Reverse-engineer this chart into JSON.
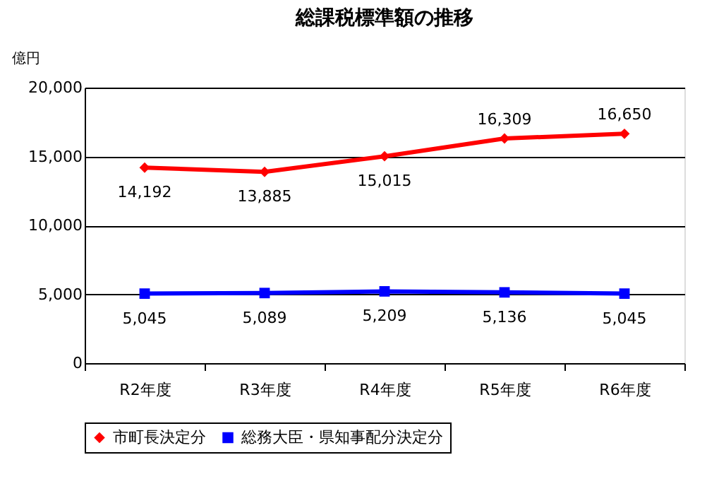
{
  "chart_data": {
    "type": "line",
    "title": "総課税標準額の推移",
    "ylabel": "億円",
    "categories": [
      "R2年度",
      "R3年度",
      "R4年度",
      "R5年度",
      "R6年度"
    ],
    "series": [
      {
        "name": "市町長決定分",
        "color": "#ff0000",
        "marker": "diamond",
        "values": [
          14192,
          13885,
          15015,
          16309,
          16650
        ],
        "value_labels": [
          "14,192",
          "13,885",
          "15,015",
          "16,309",
          "16,650"
        ]
      },
      {
        "name": "総務大臣・県知事配分決定分",
        "color": "#0000ff",
        "marker": "square",
        "values": [
          5045,
          5089,
          5209,
          5136,
          5045
        ],
        "value_labels": [
          "5,045",
          "5,089",
          "5,209",
          "5,136",
          "5,045"
        ]
      }
    ],
    "ylim": [
      0,
      20000
    ],
    "yticks": [
      {
        "value": 0,
        "label": "0"
      },
      {
        "value": 5000,
        "label": "5,000"
      },
      {
        "value": 10000,
        "label": "10,000"
      },
      {
        "value": 15000,
        "label": "15,000"
      },
      {
        "value": 20000,
        "label": "20,000"
      }
    ],
    "grid": "y",
    "legend": "bottom",
    "line_style": "solid"
  }
}
